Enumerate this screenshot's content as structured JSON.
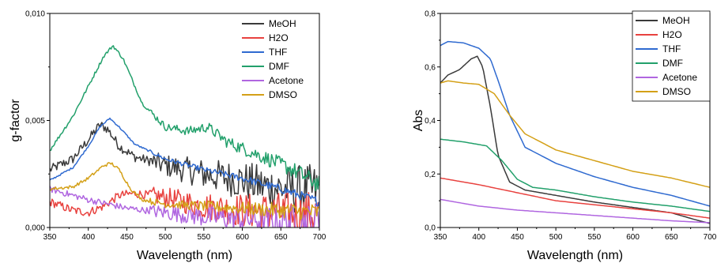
{
  "chart_data": [
    {
      "type": "line",
      "xlabel": "Wavelength (nm)",
      "ylabel": "g-factor",
      "xlim": [
        350,
        700
      ],
      "ylim": [
        0,
        0.01
      ],
      "xticks": [
        "350",
        "400",
        "450",
        "500",
        "550",
        "600",
        "650",
        "700"
      ],
      "yticks": [
        "0,000",
        "0,005",
        "0,010"
      ],
      "legend_position": "top-right",
      "series": [
        {
          "name": "MeOH",
          "color": "#3a3a3a",
          "noise": 0.00045,
          "points": [
            [
              350,
              0.0027
            ],
            [
              380,
              0.0032
            ],
            [
              400,
              0.0041
            ],
            [
              415,
              0.0048
            ],
            [
              425,
              0.0046
            ],
            [
              440,
              0.0038
            ],
            [
              460,
              0.0033
            ],
            [
              500,
              0.0029
            ],
            [
              550,
              0.0025
            ],
            [
              600,
              0.0022
            ],
            [
              630,
              0.0019
            ],
            [
              660,
              0.0018
            ],
            [
              700,
              0.0017
            ]
          ]
        },
        {
          "name": "H2O",
          "color": "#e8423f",
          "noise": 0.0004,
          "points": [
            [
              350,
              0.0012
            ],
            [
              380,
              0.0008
            ],
            [
              400,
              0.0007
            ],
            [
              420,
              0.001
            ],
            [
              440,
              0.0015
            ],
            [
              460,
              0.0016
            ],
            [
              500,
              0.0014
            ],
            [
              550,
              0.001
            ],
            [
              600,
              0.0008
            ],
            [
              650,
              0.0007
            ],
            [
              700,
              0.0006
            ]
          ]
        },
        {
          "name": "THF",
          "color": "#2f6ad0",
          "noise": 8e-05,
          "points": [
            [
              350,
              0.0022
            ],
            [
              380,
              0.0028
            ],
            [
              400,
              0.0038
            ],
            [
              415,
              0.0047
            ],
            [
              428,
              0.0051
            ],
            [
              440,
              0.0047
            ],
            [
              460,
              0.0039
            ],
            [
              500,
              0.0032
            ],
            [
              550,
              0.0027
            ],
            [
              600,
              0.0023
            ],
            [
              650,
              0.0018
            ],
            [
              700,
              0.0012
            ]
          ]
        },
        {
          "name": "DMF",
          "color": "#22a06b",
          "noise": 0.00015,
          "points": [
            [
              350,
              0.0036
            ],
            [
              380,
              0.0052
            ],
            [
              400,
              0.0066
            ],
            [
              420,
              0.008
            ],
            [
              432,
              0.0085
            ],
            [
              445,
              0.0079
            ],
            [
              470,
              0.0058
            ],
            [
              500,
              0.0047
            ],
            [
              530,
              0.0045
            ],
            [
              555,
              0.0047
            ],
            [
              580,
              0.004
            ],
            [
              620,
              0.0034
            ],
            [
              660,
              0.0028
            ],
            [
              700,
              0.002
            ]
          ]
        },
        {
          "name": "Acetone",
          "color": "#b066e0",
          "noise": 0.0003,
          "points": [
            [
              350,
              0.0018
            ],
            [
              380,
              0.0015
            ],
            [
              400,
              0.0013
            ],
            [
              450,
              0.0009
            ],
            [
              500,
              0.0007
            ],
            [
              550,
              0.0005
            ],
            [
              600,
              0.0004
            ],
            [
              650,
              0.0003
            ],
            [
              700,
              0.0003
            ]
          ]
        },
        {
          "name": "DMSO",
          "color": "#d4a017",
          "noise": 0.00015,
          "points": [
            [
              350,
              0.0018
            ],
            [
              380,
              0.0019
            ],
            [
              400,
              0.0023
            ],
            [
              420,
              0.0029
            ],
            [
              430,
              0.003
            ],
            [
              440,
              0.0027
            ],
            [
              455,
              0.0018
            ],
            [
              470,
              0.0013
            ],
            [
              500,
              0.0011
            ],
            [
              550,
              0.001
            ],
            [
              600,
              0.0009
            ],
            [
              650,
              0.0008
            ],
            [
              700,
              0.0007
            ]
          ]
        }
      ]
    },
    {
      "type": "line",
      "xlabel": "Wavelength (nm)",
      "ylabel": "Abs",
      "xlim": [
        350,
        700
      ],
      "ylim": [
        0,
        0.8
      ],
      "xticks": [
        "350",
        "400",
        "450",
        "500",
        "550",
        "600",
        "650",
        "700"
      ],
      "yticks": [
        "0,0",
        "0,2",
        "0,4",
        "0,6",
        "0,8"
      ],
      "legend_position": "top-right",
      "series": [
        {
          "name": "MeOH",
          "color": "#3a3a3a",
          "points": [
            [
              350,
              0.54
            ],
            [
              360,
              0.57
            ],
            [
              375,
              0.59
            ],
            [
              390,
              0.63
            ],
            [
              398,
              0.64
            ],
            [
              405,
              0.6
            ],
            [
              415,
              0.45
            ],
            [
              425,
              0.27
            ],
            [
              440,
              0.17
            ],
            [
              460,
              0.14
            ],
            [
              500,
              0.12
            ],
            [
              550,
              0.095
            ],
            [
              600,
              0.075
            ],
            [
              650,
              0.055
            ],
            [
              680,
              0.03
            ],
            [
              700,
              0.015
            ]
          ]
        },
        {
          "name": "H2O",
          "color": "#e8423f",
          "points": [
            [
              350,
              0.185
            ],
            [
              400,
              0.16
            ],
            [
              450,
              0.13
            ],
            [
              500,
              0.1
            ],
            [
              550,
              0.085
            ],
            [
              600,
              0.07
            ],
            [
              650,
              0.055
            ],
            [
              700,
              0.035
            ]
          ]
        },
        {
          "name": "THF",
          "color": "#2f6ad0",
          "points": [
            [
              350,
              0.68
            ],
            [
              360,
              0.695
            ],
            [
              380,
              0.69
            ],
            [
              400,
              0.67
            ],
            [
              415,
              0.63
            ],
            [
              425,
              0.55
            ],
            [
              440,
              0.42
            ],
            [
              460,
              0.3
            ],
            [
              500,
              0.24
            ],
            [
              550,
              0.19
            ],
            [
              600,
              0.15
            ],
            [
              650,
              0.12
            ],
            [
              700,
              0.08
            ]
          ]
        },
        {
          "name": "DMF",
          "color": "#22a06b",
          "points": [
            [
              350,
              0.33
            ],
            [
              380,
              0.32
            ],
            [
              410,
              0.305
            ],
            [
              430,
              0.25
            ],
            [
              450,
              0.18
            ],
            [
              470,
              0.15
            ],
            [
              500,
              0.14
            ],
            [
              550,
              0.115
            ],
            [
              600,
              0.095
            ],
            [
              650,
              0.08
            ],
            [
              700,
              0.06
            ]
          ]
        },
        {
          "name": "Acetone",
          "color": "#b066e0",
          "points": [
            [
              350,
              0.105
            ],
            [
              400,
              0.08
            ],
            [
              450,
              0.065
            ],
            [
              500,
              0.055
            ],
            [
              550,
              0.045
            ],
            [
              600,
              0.035
            ],
            [
              650,
              0.025
            ],
            [
              700,
              0.018
            ]
          ]
        },
        {
          "name": "DMSO",
          "color": "#d4a017",
          "points": [
            [
              350,
              0.54
            ],
            [
              360,
              0.548
            ],
            [
              380,
              0.54
            ],
            [
              400,
              0.535
            ],
            [
              420,
              0.5
            ],
            [
              440,
              0.42
            ],
            [
              460,
              0.35
            ],
            [
              500,
              0.29
            ],
            [
              550,
              0.25
            ],
            [
              600,
              0.21
            ],
            [
              650,
              0.185
            ],
            [
              700,
              0.15
            ]
          ]
        }
      ]
    }
  ]
}
